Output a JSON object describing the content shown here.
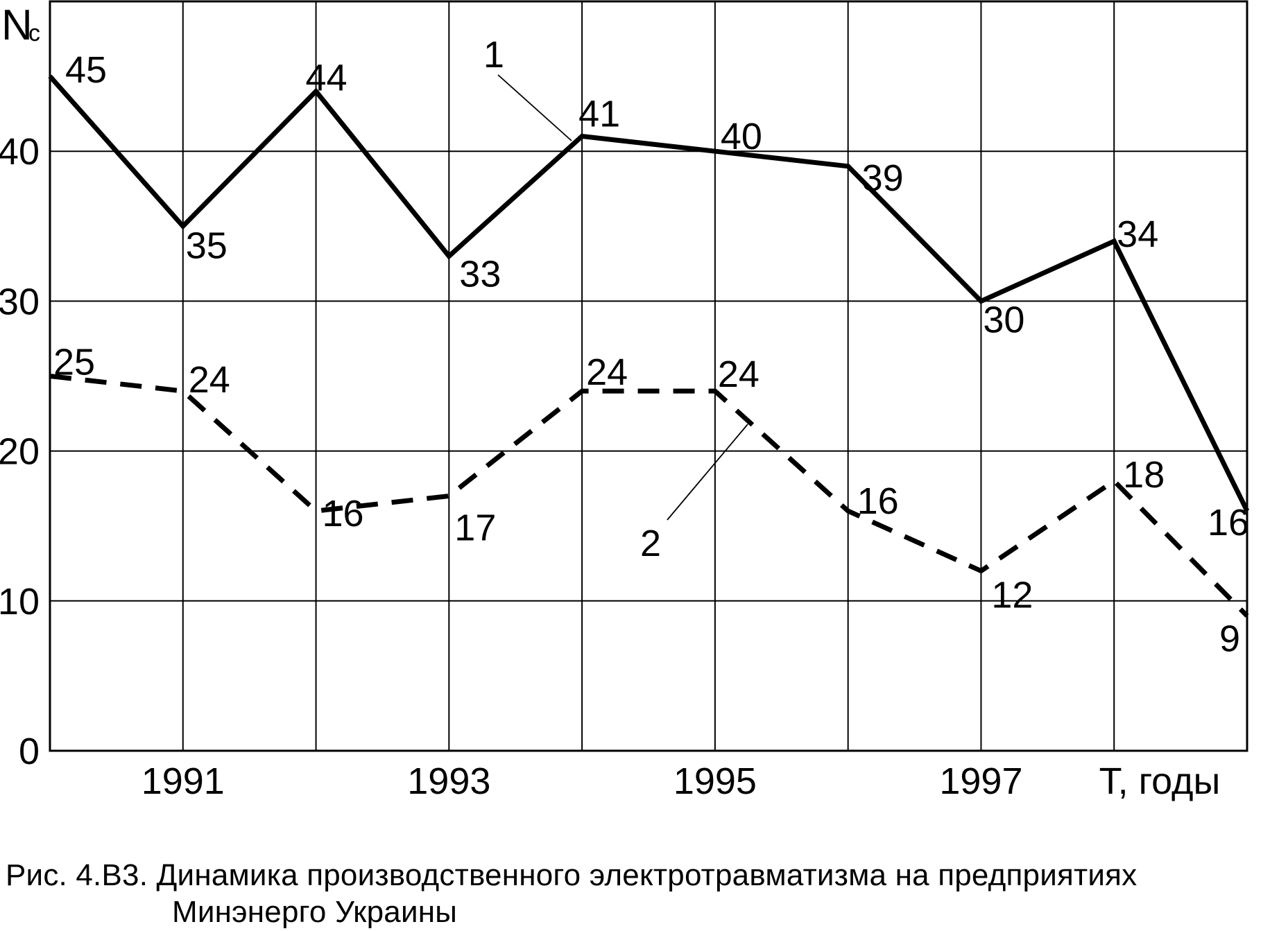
{
  "chart_data": {
    "type": "line",
    "title": "",
    "x": [
      1990,
      1991,
      1992,
      1993,
      1994,
      1995,
      1996,
      1997,
      1998,
      1999
    ],
    "x_tick_labels": [
      "1991",
      "1993",
      "1995",
      "1997"
    ],
    "x_tick_years": [
      1991,
      1993,
      1995,
      1997
    ],
    "series": [
      {
        "name": "1",
        "style": "solid",
        "values": [
          45,
          35,
          44,
          33,
          41,
          40,
          39,
          30,
          34,
          16
        ]
      },
      {
        "name": "2",
        "style": "dashed",
        "values": [
          25,
          24,
          16,
          17,
          24,
          24,
          16,
          12,
          18,
          9
        ]
      }
    ],
    "y_ticks": [
      0,
      10,
      20,
      30,
      40
    ],
    "ylim": [
      0,
      50
    ],
    "grid": true,
    "legend_position": "none",
    "y_axis_label": {
      "base": "N",
      "subscript": "c"
    },
    "x_axis_label": "Т, годы",
    "annotations": [
      {
        "text": "1",
        "points_to_series": "1"
      },
      {
        "text": "2",
        "points_to_series": "2"
      }
    ]
  },
  "colors": {
    "line": "#000000",
    "grid": "#000000",
    "background": "#ffffff",
    "text": "#000000"
  },
  "caption": {
    "line1": "Рис. 4.В3. Динамика производственного электротравматизма на предприятиях",
    "line2": "Минэнерго Украины"
  }
}
